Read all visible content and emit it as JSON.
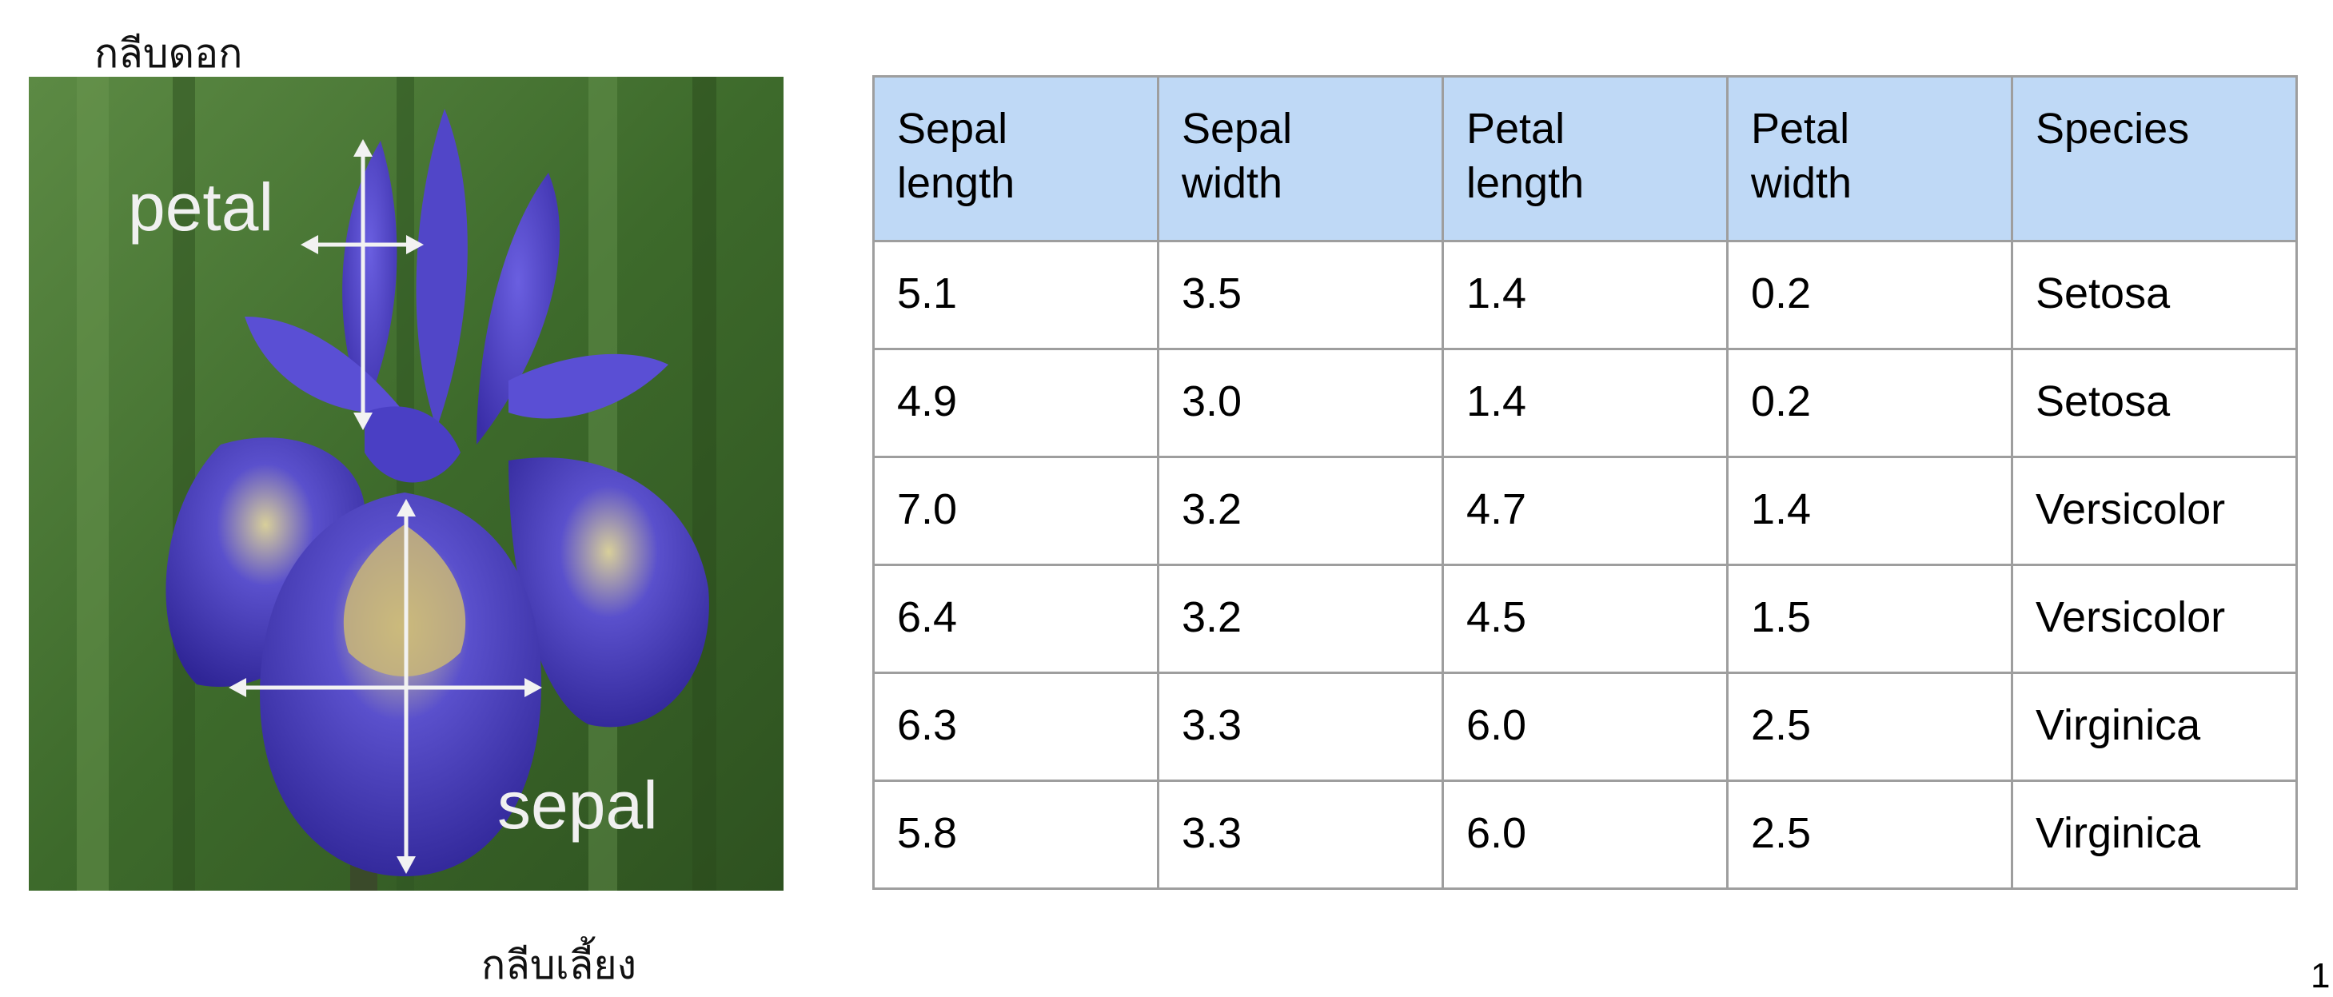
{
  "captions": {
    "top": "กลีบดอก",
    "bottom": "กลีบเลี้ยง"
  },
  "figure": {
    "petal_label": "petal",
    "sepal_label": "sepal"
  },
  "table": {
    "headers": [
      [
        "Sepal",
        "length"
      ],
      [
        "Sepal",
        "width"
      ],
      [
        "Petal",
        "length"
      ],
      [
        "Petal",
        "width"
      ],
      [
        "Species",
        ""
      ]
    ],
    "rows": [
      [
        "5.1",
        "3.5",
        "1.4",
        "0.2",
        "Setosa"
      ],
      [
        "4.9",
        "3.0",
        "1.4",
        "0.2",
        "Setosa"
      ],
      [
        "7.0",
        "3.2",
        "4.7",
        "1.4",
        "Versicolor"
      ],
      [
        "6.4",
        "3.2",
        "4.5",
        "1.5",
        "Versicolor"
      ],
      [
        "6.3",
        "3.3",
        "6.0",
        "2.5",
        "Virginica"
      ],
      [
        "5.8",
        "3.3",
        "6.0",
        "2.5",
        "Virginica"
      ]
    ]
  },
  "page_number": "1",
  "colors": {
    "header_bg": "#bfd9f6",
    "border": "#9e9e9e",
    "petal_blue": "#4a3fc4",
    "background_green": "#3f6b2c"
  }
}
